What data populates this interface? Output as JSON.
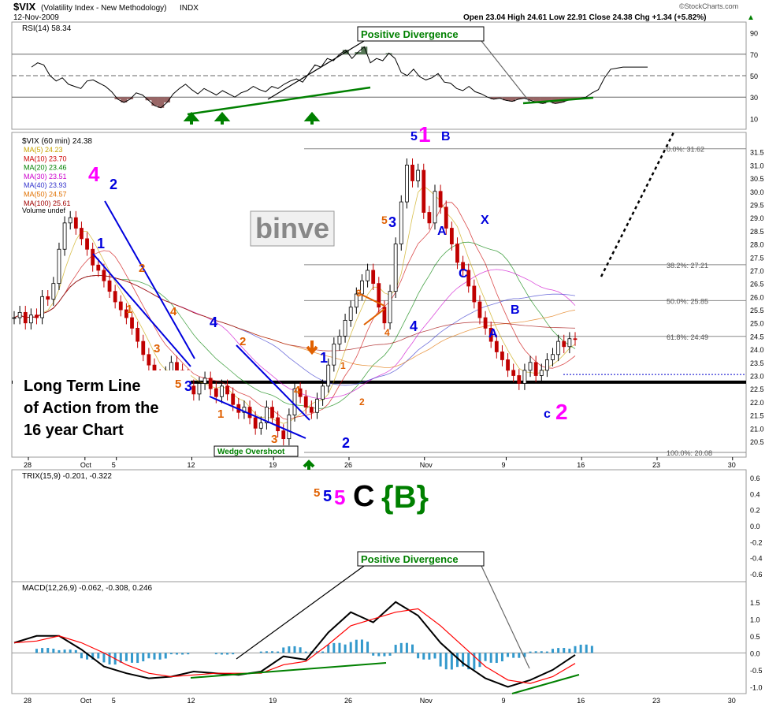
{
  "header": {
    "symbol": "$VIX",
    "name": "(Volatility Index - New Methodology)",
    "exchange": "INDX",
    "date": "12-Nov-2009",
    "quote": "Open 23.04  High 24.61  Low 22.91  Close 24.38  Chg +1.34 (+5.82%)",
    "quote_arrow": "▲",
    "copyright": "©StockCharts.com"
  },
  "colors": {
    "up": "#008000",
    "magenta": "#ff00ff",
    "blue": "#0000dd",
    "orange": "#e06000",
    "histogram": "#3399cc"
  },
  "chart_data": [
    {
      "id": "rsi",
      "type": "line",
      "label": "RSI(14) 58.34",
      "ylim": [
        0,
        100
      ],
      "y_ticks": [
        10,
        30,
        50,
        70,
        90
      ],
      "levels": [
        30,
        50,
        70
      ],
      "series": [
        {
          "name": "RSI(14)",
          "x": [
            0,
            1,
            2,
            3,
            4,
            5,
            6,
            7,
            8,
            9,
            10,
            11,
            12,
            13,
            14,
            15,
            16,
            17,
            18,
            19,
            20,
            21,
            22,
            23,
            24,
            25,
            26,
            27,
            28,
            29,
            30,
            31,
            32,
            33,
            34,
            35,
            36,
            37,
            38,
            39,
            40,
            41,
            42,
            43,
            44,
            45,
            46,
            47,
            48,
            49,
            50,
            51,
            52,
            53,
            54,
            55,
            56,
            57,
            58,
            59,
            60,
            61,
            62,
            63,
            64,
            65,
            66,
            67,
            68,
            69,
            70,
            71,
            72,
            73,
            74,
            75,
            76,
            77,
            78,
            79,
            80,
            81,
            82,
            83,
            84,
            85,
            86,
            87,
            88,
            89,
            90,
            91,
            92,
            93,
            94,
            95,
            96,
            97,
            98,
            99,
            100
          ],
          "values": [
            58,
            62,
            60,
            50,
            45,
            48,
            42,
            40,
            38,
            45,
            46,
            43,
            40,
            35,
            28,
            25,
            28,
            34,
            32,
            27,
            22,
            20,
            25,
            33,
            38,
            42,
            37,
            33,
            38,
            35,
            32,
            36,
            33,
            30,
            34,
            36,
            40,
            37,
            35,
            40,
            38,
            42,
            45,
            47,
            44,
            52,
            60,
            58,
            66,
            64,
            70,
            74,
            66,
            72,
            77,
            62,
            66,
            64,
            71,
            66,
            53,
            50,
            56,
            49,
            46,
            48,
            52,
            44,
            43,
            38,
            36,
            40,
            35,
            33,
            30,
            28,
            29,
            27,
            26,
            28,
            29,
            27,
            25,
            24,
            26,
            24,
            25,
            27,
            28,
            29,
            30,
            34,
            37,
            48,
            56,
            57,
            58,
            58,
            58,
            58,
            58
          ],
          "color": "#000000"
        }
      ],
      "annotation": "Positive Divergence"
    },
    {
      "id": "price",
      "type": "candlestick",
      "label": "$VIX (60 min) 24.38",
      "ylim": [
        20.08,
        32.0
      ],
      "y_ticks": [
        20.5,
        21.0,
        21.5,
        22.0,
        22.5,
        23.0,
        23.5,
        24.0,
        24.5,
        25.0,
        25.5,
        26.0,
        26.5,
        27.0,
        27.5,
        28.0,
        28.5,
        29.0,
        29.5,
        30.0,
        30.5,
        31.0,
        31.5
      ],
      "x_labels": [
        {
          "x": 0,
          "label": "28"
        },
        {
          "x": 9,
          "label": "Oct"
        },
        {
          "x": 14,
          "label": "5"
        },
        {
          "x": 26,
          "label": "12"
        },
        {
          "x": 39,
          "label": "19"
        },
        {
          "x": 51,
          "label": "26"
        },
        {
          "x": 63,
          "label": "Nov"
        },
        {
          "x": 76,
          "label": "9"
        },
        {
          "x": 88,
          "label": "16"
        },
        {
          "x": 100,
          "label": "23"
        },
        {
          "x": 112,
          "label": "30"
        }
      ],
      "closes": [
        25.2,
        25.4,
        25.0,
        25.3,
        25.2,
        26.0,
        25.9,
        26.5,
        27.8,
        28.8,
        29.0,
        28.6,
        28.2,
        27.8,
        27.2,
        27.0,
        26.6,
        26.2,
        25.8,
        25.5,
        25.2,
        24.8,
        24.3,
        23.8,
        23.4,
        23.0,
        22.8,
        23.1,
        23.5,
        23.2,
        23.0,
        22.6,
        22.3,
        22.7,
        22.9,
        22.5,
        22.2,
        22.6,
        22.3,
        21.9,
        21.6,
        21.8,
        21.4,
        21.0,
        21.2,
        21.8,
        21.4,
        20.9,
        20.6,
        21.5,
        22.5,
        22.2,
        21.8,
        21.6,
        22.1,
        22.6,
        23.4,
        24.2,
        24.5,
        25.1,
        25.6,
        26.1,
        26.6,
        27.0,
        26.5,
        25.6,
        25.0,
        26.2,
        28.0,
        29.6,
        31.0,
        30.4,
        30.8,
        29.2,
        28.8,
        30.0,
        29.4,
        28.6,
        28.0,
        27.3,
        27.0,
        26.4,
        25.8,
        25.2,
        24.8,
        24.3,
        23.9,
        23.6,
        23.2,
        23.0,
        22.7,
        23.2,
        23.5,
        23.0,
        23.2,
        23.6,
        23.8,
        24.3,
        24.1,
        24.4,
        24.38
      ],
      "mas": [
        {
          "name": "MA(5)",
          "value": "24.23",
          "period": 5,
          "color": "#c8a400"
        },
        {
          "name": "MA(10)",
          "value": "23.70",
          "period": 10,
          "color": "#cc0000"
        },
        {
          "name": "MA(20)",
          "value": "23.46",
          "period": 20,
          "color": "#008000"
        },
        {
          "name": "MA(30)",
          "value": "23.51",
          "period": 30,
          "color": "#cc00cc"
        },
        {
          "name": "MA(40)",
          "value": "23.93",
          "period": 40,
          "color": "#3333cc"
        },
        {
          "name": "MA(50)",
          "value": "24.57",
          "period": 50,
          "color": "#e07000"
        },
        {
          "name": "MA(100)",
          "value": "25.61",
          "period": 100,
          "color": "#a00000"
        }
      ],
      "volume_label": "Volume undef",
      "fib_levels": [
        {
          "label": "0.0%: 31.62",
          "value": 31.62
        },
        {
          "label": "38.2%: 27.21",
          "value": 27.21
        },
        {
          "label": "50.0%: 25.85",
          "value": 25.85
        },
        {
          "label": "61.8%: 24.49",
          "value": 24.49
        },
        {
          "label": "100.0%: 20.08",
          "value": 20.08
        }
      ],
      "long_term_line": 22.75,
      "dotted_level": 23.04
    },
    {
      "id": "trix",
      "type": "line",
      "label": "TRIX(15,9) -0.201, -0.322",
      "ylim": [
        -0.7,
        0.7
      ],
      "y_ticks": [
        -0.6,
        -0.4,
        -0.2,
        0.0,
        0.2,
        0.4,
        0.6
      ],
      "series": [],
      "annotation": "Positive Divergence"
    },
    {
      "id": "macd",
      "type": "line",
      "label": "MACD(12,26,9) -0.062, -0.308, 0.246",
      "ylim": [
        -1.2,
        2.1
      ],
      "y_ticks": [
        -1.0,
        -0.5,
        0.0,
        0.5,
        1.0,
        1.5
      ],
      "series": [
        {
          "name": "MACD",
          "color": "#000000",
          "x": [
            0,
            4,
            8,
            12,
            16,
            20,
            24,
            28,
            32,
            36,
            40,
            44,
            48,
            52,
            56,
            60,
            64,
            68,
            72,
            76,
            80,
            84,
            88,
            92,
            96,
            100
          ],
          "values": [
            0.3,
            0.5,
            0.5,
            0.1,
            -0.4,
            -0.6,
            -0.75,
            -0.7,
            -0.55,
            -0.6,
            -0.65,
            -0.55,
            -0.1,
            -0.2,
            0.6,
            1.2,
            0.9,
            1.5,
            1.1,
            0.3,
            -0.3,
            -0.75,
            -1.0,
            -0.8,
            -0.5,
            -0.06
          ]
        },
        {
          "name": "Signal",
          "color": "#ff0000",
          "x": [
            0,
            4,
            8,
            12,
            16,
            20,
            24,
            28,
            32,
            36,
            40,
            44,
            48,
            52,
            56,
            60,
            64,
            68,
            72,
            76,
            80,
            84,
            88,
            92,
            96,
            100
          ],
          "values": [
            0.3,
            0.35,
            0.5,
            0.3,
            0.0,
            -0.35,
            -0.6,
            -0.7,
            -0.65,
            -0.6,
            -0.6,
            -0.6,
            -0.35,
            -0.25,
            0.25,
            0.8,
            1.0,
            1.2,
            1.3,
            0.8,
            0.2,
            -0.4,
            -0.8,
            -0.9,
            -0.7,
            -0.31
          ]
        }
      ],
      "histogram": [
        0.0,
        0.15,
        0.1,
        -0.2,
        -0.35,
        -0.3,
        -0.2,
        -0.05,
        0.0,
        -0.05,
        0.0,
        0.05,
        0.2,
        0.05,
        0.3,
        0.4,
        -0.1,
        0.3,
        -0.2,
        -0.5,
        -0.5,
        -0.3,
        -0.15,
        0.05,
        0.15,
        0.25
      ],
      "x_labels": [
        {
          "x": 0,
          "label": "28"
        },
        {
          "x": 9,
          "label": "Oct"
        },
        {
          "x": 14,
          "label": "5"
        },
        {
          "x": 26,
          "label": "12"
        },
        {
          "x": 39,
          "label": "19"
        },
        {
          "x": 51,
          "label": "26"
        },
        {
          "x": 63,
          "label": "Nov"
        },
        {
          "x": 76,
          "label": "9"
        },
        {
          "x": 88,
          "label": "16"
        },
        {
          "x": 100,
          "label": "23"
        },
        {
          "x": 112,
          "label": "30"
        }
      ],
      "annotation": "Positive Divergence"
    }
  ],
  "annotations": {
    "watermark": "binve",
    "long_term_line": "Long Term Line of Action from the 16 year Chart",
    "wedge": "Wedge Overshoot",
    "big_label": "C",
    "brace_label": "{B}",
    "small_5a": "5",
    "small_5b": "5",
    "small_5c": "5",
    "waves": {
      "w4_top": "4",
      "w2_top": "2",
      "w1_blue": "1",
      "w2_or": "2",
      "w1_or": "1",
      "w4_or": "4",
      "w3_or": "3",
      "w4_blue": "4",
      "w5_or": "5",
      "w3_blue": "3",
      "w2_or2": "2",
      "w1_or2": "1",
      "w4_or2": "4",
      "w3_or2": "3",
      "w1_blue2": "1",
      "w2_blue": "2",
      "w1_or3": "1",
      "w2_or3": "2",
      "w3_or3": "3",
      "w4_or3": "4",
      "w5_or2": "5",
      "w3_blue2": "3",
      "w4_blue2": "4",
      "w5_blue": "5",
      "w1_mag": "1",
      "wB": "B",
      "wA": "A",
      "wX": "X",
      "wC": "C",
      "wB2": "B",
      "wA2": "A",
      "wc": "c",
      "w2_mag": "2"
    },
    "rsi_divergence": "Positive Divergence",
    "trix_divergence": "Positive Divergence"
  }
}
